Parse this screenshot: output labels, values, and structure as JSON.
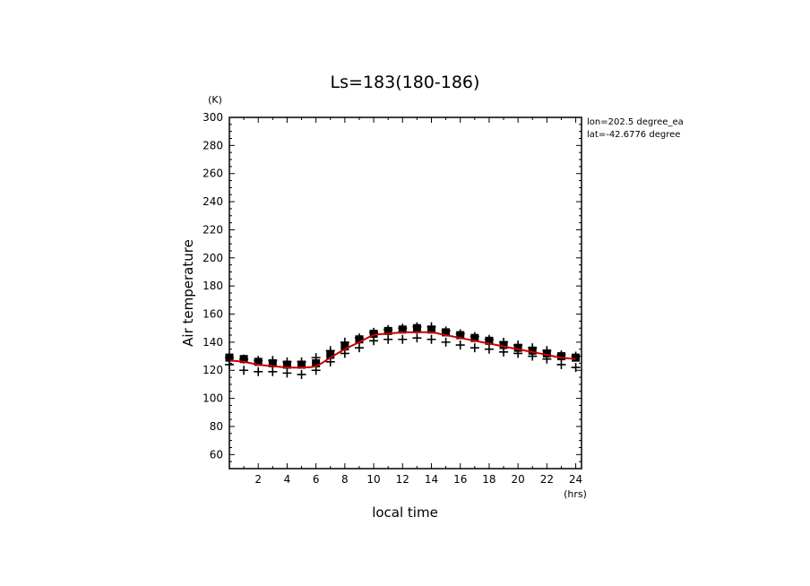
{
  "chart_data": {
    "type": "scatter",
    "title": "Ls=183(180-186)",
    "xlabel": "local time",
    "ylabel": "Air temperature",
    "x_unit": "(hrs)",
    "y_unit": "(K)",
    "xlim": [
      0,
      24.4
    ],
    "ylim": [
      50,
      300
    ],
    "x_ticks": [
      2,
      4,
      6,
      8,
      10,
      12,
      14,
      16,
      18,
      20,
      22,
      24
    ],
    "y_ticks": [
      60,
      80,
      100,
      120,
      140,
      160,
      180,
      200,
      220,
      240,
      260,
      280,
      300
    ],
    "annotations": [
      "lon=202.5 degree_ea",
      "lat=-42.6776 degree"
    ],
    "grid": false,
    "x": [
      0,
      1,
      2,
      3,
      4,
      5,
      6,
      7,
      8,
      9,
      10,
      11,
      12,
      13,
      14,
      15,
      16,
      17,
      18,
      19,
      20,
      21,
      22,
      23,
      24
    ],
    "series": [
      {
        "marker": "square",
        "color": "#000000",
        "values": [
          129,
          128,
          126,
          125,
          124,
          124,
          125,
          131,
          137,
          142,
          146,
          148,
          149,
          150,
          149,
          147,
          145,
          143,
          141,
          138,
          136,
          134,
          132,
          130,
          129
        ]
      },
      {
        "marker": "plus",
        "color": "#000000",
        "values": [
          124,
          120,
          119,
          119,
          118,
          117,
          120,
          126,
          132,
          136,
          141,
          142,
          142,
          143,
          142,
          140,
          138,
          136,
          135,
          133,
          132,
          130,
          128,
          124,
          122
        ]
      },
      {
        "marker": "plus",
        "color": "#000000",
        "values": [
          129,
          128,
          127,
          127,
          126,
          126,
          129,
          134,
          140,
          143,
          147,
          149,
          150,
          151,
          151,
          148,
          146,
          144,
          142,
          140,
          138,
          136,
          134,
          131,
          130
        ]
      },
      {
        "marker": "line",
        "color": "#cc0000",
        "values": [
          127,
          126,
          124,
          123,
          122,
          122,
          123,
          129,
          135,
          140,
          145,
          146,
          147,
          147,
          147,
          145,
          143,
          141,
          139,
          137,
          135,
          133,
          131,
          129,
          128
        ]
      }
    ]
  }
}
